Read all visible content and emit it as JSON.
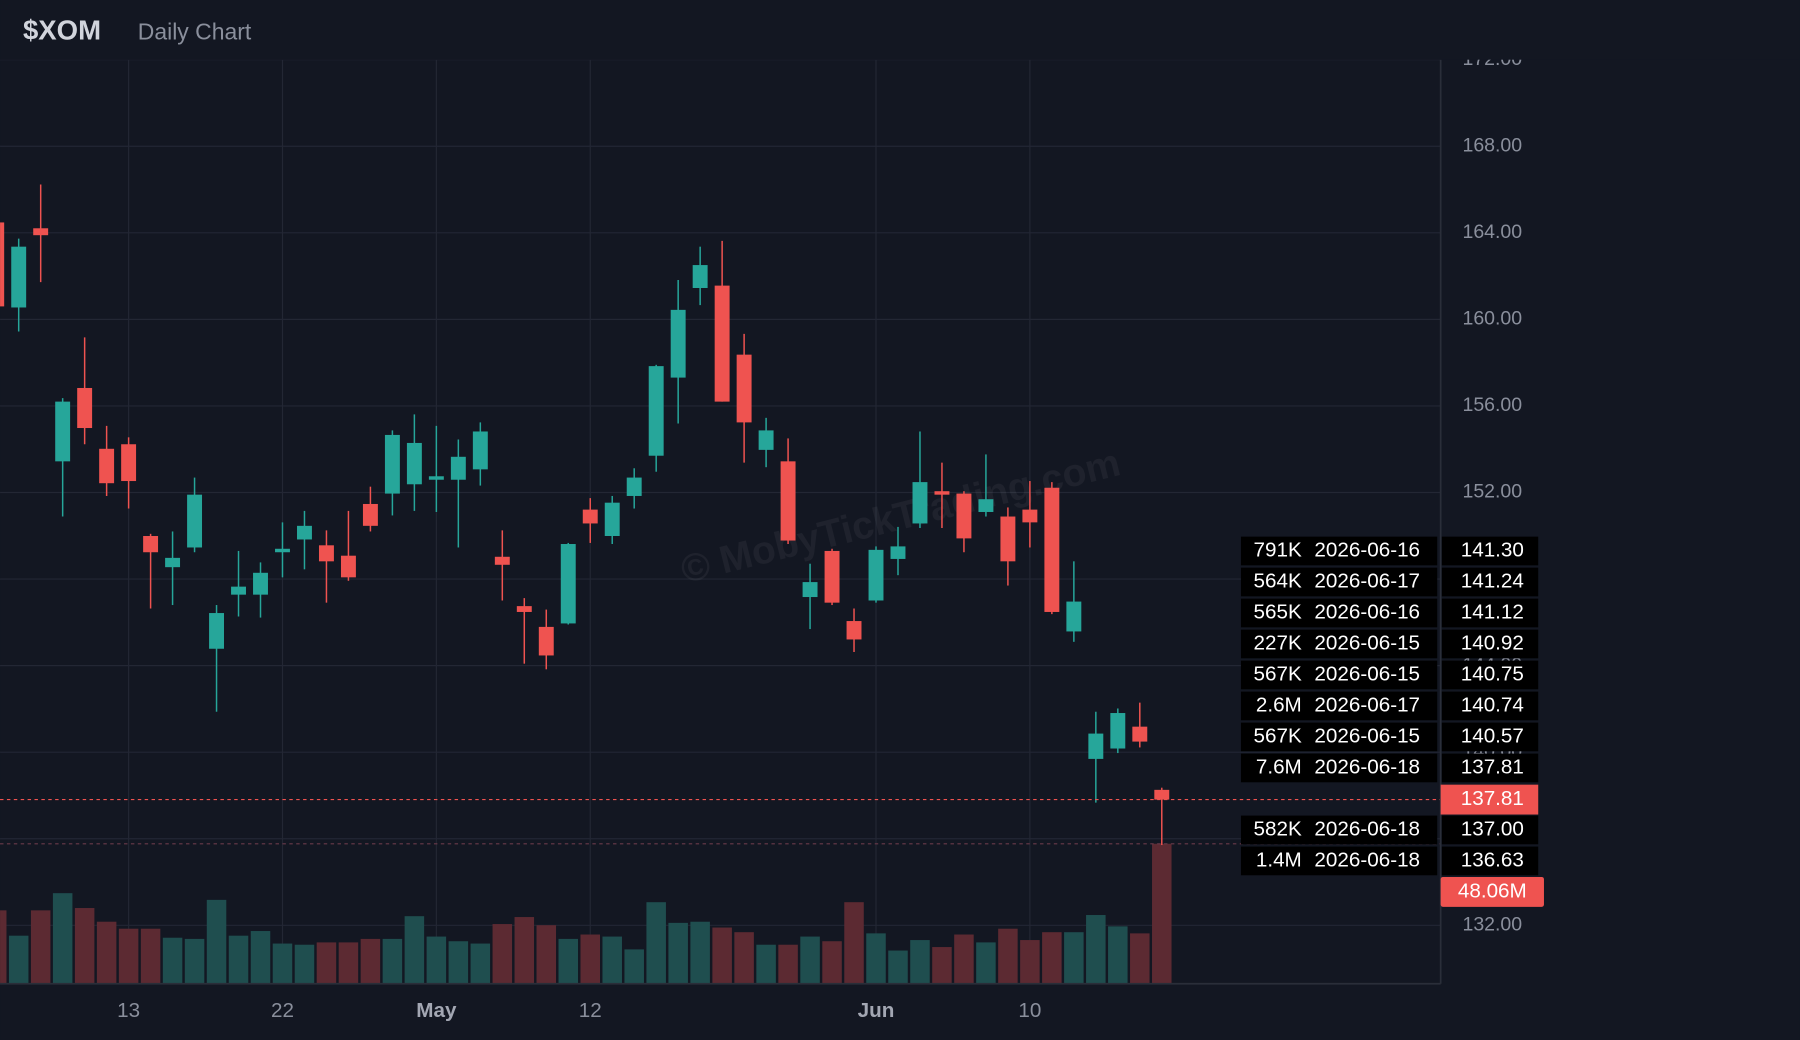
{
  "chart_data": {
    "type": "candlestick",
    "title": "$XOM",
    "subtitle": "Daily Chart",
    "watermark": "© MobyTickTrading.com",
    "categories": [
      null,
      null,
      null,
      null,
      null,
      null,
      "13",
      null,
      null,
      null,
      null,
      null,
      null,
      "22",
      null,
      null,
      null,
      null,
      null,
      null,
      "May",
      null,
      null,
      null,
      null,
      null,
      null,
      "12",
      null,
      null,
      null,
      null,
      null,
      null,
      null,
      null,
      null,
      null,
      null,
      null,
      "Jun",
      null,
      null,
      null,
      null,
      null,
      null,
      "10",
      null,
      null,
      null,
      null,
      null,
      null
    ],
    "open": [
      164.48,
      160.55,
      164.21,
      153.44,
      156.83,
      154.02,
      154.23,
      149.99,
      148.55,
      149.46,
      144.78,
      147.28,
      147.28,
      149.24,
      149.83,
      149.56,
      149.08,
      151.47,
      151.95,
      152.38,
      152.59,
      152.59,
      153.07,
      149.03,
      146.75,
      145.79,
      145.95,
      151.21,
      149.99,
      151.84,
      153.7,
      157.31,
      161.45,
      161.56,
      158.37,
      153.97,
      153.44,
      147.17,
      149.3,
      146.06,
      147.01,
      148.93,
      150.57,
      152.06,
      151.95,
      151.1,
      150.89,
      151.21,
      152.22,
      145.58,
      139.69,
      140.17,
      141.18,
      138.26
    ],
    "high": [
      164.96,
      163.73,
      166.23,
      156.36,
      159.17,
      155.08,
      154.55,
      150.09,
      150.2,
      152.69,
      146.8,
      149.3,
      148.77,
      150.62,
      151.15,
      150.25,
      151.15,
      152.27,
      154.87,
      155.61,
      155.08,
      154.45,
      155.24,
      150.25,
      147.12,
      146.59,
      149.67,
      151.74,
      151.84,
      153.12,
      157.9,
      161.82,
      163.36,
      163.63,
      159.33,
      155.45,
      154.5,
      148.71,
      149.4,
      146.64,
      149.51,
      150.41,
      154.82,
      153.38,
      152.06,
      153.76,
      151.31,
      152.53,
      152.48,
      148.82,
      141.87,
      142.02,
      142.29,
      138.36
    ],
    "low": [
      160.6,
      159.44,
      161.72,
      150.89,
      154.23,
      151.84,
      151.26,
      146.64,
      146.8,
      149.24,
      141.87,
      146.27,
      146.22,
      148.08,
      148.45,
      146.91,
      147.92,
      150.2,
      150.94,
      151.15,
      151.1,
      149.46,
      152.32,
      147.01,
      144.09,
      143.83,
      145.9,
      149.67,
      149.62,
      151.26,
      152.96,
      155.19,
      160.66,
      156.2,
      153.38,
      153.17,
      149.62,
      145.69,
      146.8,
      144.63,
      146.91,
      148.18,
      150.36,
      150.36,
      149.24,
      150.89,
      147.7,
      149.46,
      146.38,
      145.1,
      137.67,
      139.96,
      140.22,
      135.71
    ],
    "close": [
      160.6,
      163.36,
      163.89,
      156.2,
      154.98,
      152.43,
      152.53,
      149.24,
      148.98,
      151.9,
      146.43,
      147.65,
      148.29,
      149.4,
      150.46,
      148.82,
      148.08,
      150.46,
      154.66,
      154.29,
      152.75,
      153.65,
      154.82,
      148.66,
      146.48,
      144.47,
      149.62,
      150.57,
      151.53,
      152.69,
      157.84,
      160.44,
      162.51,
      156.2,
      155.24,
      154.87,
      149.78,
      147.86,
      146.91,
      145.21,
      149.35,
      149.51,
      152.48,
      151.9,
      149.88,
      151.69,
      148.82,
      150.62,
      146.48,
      146.96,
      140.86,
      141.81,
      140.49,
      137.81
    ],
    "volume": [
      25.2,
      16.5,
      25.2,
      31.1,
      26.0,
      21.3,
      18.9,
      18.9,
      15.8,
      15.4,
      28.8,
      16.5,
      18.1,
      13.8,
      13.4,
      14.2,
      14.2,
      15.4,
      15.4,
      23.2,
      16.2,
      14.6,
      13.8,
      20.5,
      22.9,
      20.1,
      15.4,
      16.9,
      16.2,
      11.8,
      28.0,
      20.9,
      21.3,
      19.3,
      17.7,
      13.4,
      13.4,
      16.2,
      14.6,
      28.0,
      17.3,
      11.4,
      15.0,
      12.6,
      16.9,
      14.2,
      18.9,
      15.0,
      17.7,
      17.7,
      23.6,
      19.7,
      17.3,
      48.06
    ],
    "volume_lim": [
      0,
      80
    ],
    "last_price_label": "137.81",
    "last_volume_label": "48.06M",
    "up_color": "#26a69a",
    "down_color": "#ef5350",
    "up_volume_color": "#1f4e4f",
    "down_volume_color": "#5c2a32",
    "ylim": [
      129.3,
      172.0
    ],
    "yticks": [
      {
        "value": 132,
        "label": "132.00"
      },
      {
        "value": 136,
        "label": "136.00"
      },
      {
        "value": 140,
        "label": "140.00"
      },
      {
        "value": 144,
        "label": "144.00"
      },
      {
        "value": 148,
        "label": "148.00"
      },
      {
        "value": 152,
        "label": "152.00"
      },
      {
        "value": 156,
        "label": "156.00"
      },
      {
        "value": 160,
        "label": "160.00"
      },
      {
        "value": 164,
        "label": "164.00"
      },
      {
        "value": 168,
        "label": "168.00"
      },
      {
        "value": 172,
        "label": "172.00"
      }
    ],
    "grid": true,
    "levels": [
      [
        "791K",
        "2026-06-16",
        "141.30"
      ],
      [
        "564K",
        "2026-06-17",
        "141.24"
      ],
      [
        "565K",
        "2026-06-16",
        "141.12"
      ],
      [
        "227K",
        "2026-06-15",
        "140.92"
      ],
      [
        "567K",
        "2026-06-15",
        "140.75"
      ],
      [
        "2.6M",
        "2026-06-17",
        "140.74"
      ],
      [
        "567K",
        "2026-06-15",
        "140.57"
      ],
      [
        "7.6M",
        "2026-06-18",
        "137.81"
      ],
      [
        "582K",
        "2026-06-18",
        "137.00"
      ],
      [
        "1.4M",
        "2026-06-18",
        "136.63"
      ]
    ]
  }
}
